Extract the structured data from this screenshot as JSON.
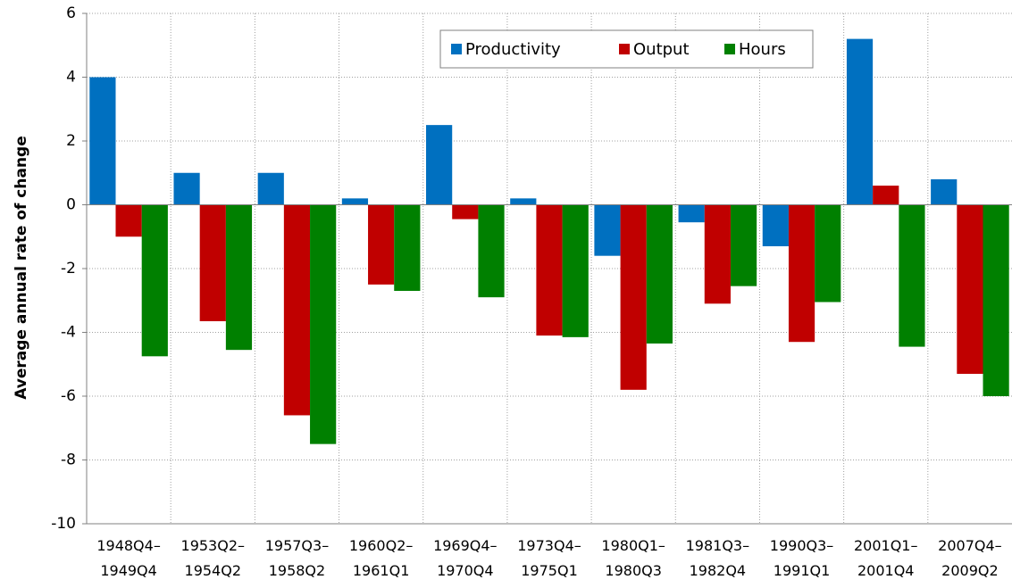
{
  "chart_data": {
    "type": "bar",
    "y_label": "Average annual rate of change",
    "categories": [
      "1948Q4–\n1949Q4",
      "1953Q2–\n1954Q2",
      "1957Q3–\n1958Q2",
      "1960Q2–\n1961Q1",
      "1969Q4–\n1970Q4",
      "1973Q4–\n1975Q1",
      "1980Q1–\n1980Q3",
      "1981Q3–\n1982Q4",
      "1990Q3–\n1991Q1",
      "2001Q1–\n2001Q4",
      "2007Q4–\n2009Q2"
    ],
    "series": [
      {
        "name": "Productivity",
        "color": "#0070c0",
        "values": [
          4.0,
          1.0,
          1.0,
          0.2,
          2.5,
          0.2,
          -1.6,
          -0.55,
          -1.3,
          5.2,
          0.8
        ]
      },
      {
        "name": "Output",
        "color": "#c00000",
        "values": [
          -1.0,
          -3.65,
          -6.6,
          -2.5,
          -0.45,
          -4.1,
          -5.8,
          -3.1,
          -4.3,
          0.6,
          -5.3
        ]
      },
      {
        "name": "Hours",
        "color": "#008000",
        "values": [
          -4.75,
          -4.55,
          -7.5,
          -2.7,
          -2.9,
          -4.15,
          -4.35,
          -2.55,
          -3.05,
          -4.45,
          -6.0
        ]
      }
    ],
    "ylim": [
      -10,
      6
    ],
    "yticks": [
      -10,
      -8,
      -6,
      -4,
      -2,
      0,
      2,
      4,
      6
    ],
    "grid": true,
    "legend": "upper center"
  }
}
